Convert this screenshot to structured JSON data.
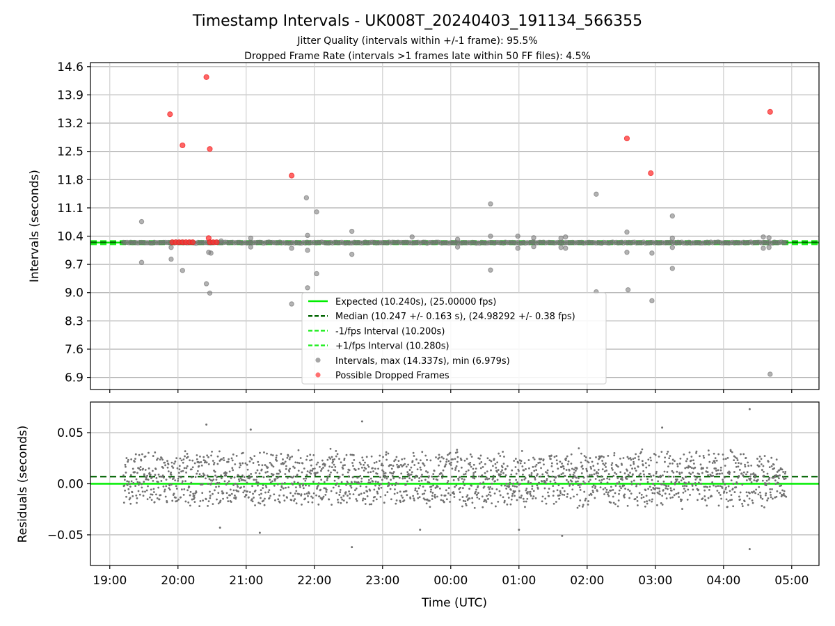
{
  "title": "Timestamp Intervals - UK008T_20240403_191134_566355",
  "subtitle_lines": [
    "Jitter Quality (intervals within +/-1 frame): 95.5%",
    "Dropped Frame Rate (intervals >1 frames late within 50 FF files): 4.5%"
  ],
  "colors": {
    "expected": "#00ee00",
    "median": "#006400",
    "interval_bounds": "#22ee22",
    "points": "#808080",
    "dropped": "#ff3333",
    "grid": "#b0b0b0"
  },
  "chart_data": [
    {
      "type": "scatter",
      "ylabel": "Intervals (seconds)",
      "ylim": [
        6.6,
        14.7
      ],
      "yticks": [
        "6.9",
        "7.6",
        "8.3",
        "9.0",
        "9.7",
        "10.4",
        "11.1",
        "11.8",
        "12.5",
        "13.2",
        "13.9",
        "14.6"
      ],
      "xlim": [
        "18:43",
        "05:24"
      ],
      "grid": true,
      "legend_position": "lower center",
      "legend": [
        "Expected (10.240s), (25.00000 fps)",
        "Median (10.247 +/- 0.163 s), (24.98292 +/- 0.38 fps)",
        "-1/fps Interval (10.200s)",
        "+1/fps Interval (10.280s)",
        "Intervals, max (14.337s), min (6.979s)",
        "Possible Dropped Frames"
      ],
      "lines": {
        "expected": 10.24,
        "median": 10.247,
        "lower": 10.2,
        "upper": 10.28
      },
      "main_band": {
        "start": "19:12",
        "end": "04:55",
        "value": 10.24
      },
      "outliers": [
        {
          "t": "19:28",
          "v": 10.76
        },
        {
          "t": "19:28",
          "v": 9.75
        },
        {
          "t": "19:54",
          "v": 9.83
        },
        {
          "t": "19:54",
          "v": 10.12
        },
        {
          "t": "20:04",
          "v": 9.55
        },
        {
          "t": "20:25",
          "v": 9.22
        },
        {
          "t": "20:27",
          "v": 10.0
        },
        {
          "t": "20:28",
          "v": 8.99
        },
        {
          "t": "20:29",
          "v": 9.98
        },
        {
          "t": "20:38",
          "v": 10.28
        },
        {
          "t": "21:04",
          "v": 10.35
        },
        {
          "t": "21:04",
          "v": 10.13
        },
        {
          "t": "21:40",
          "v": 10.1
        },
        {
          "t": "21:40",
          "v": 8.72
        },
        {
          "t": "21:53",
          "v": 11.35
        },
        {
          "t": "21:54",
          "v": 10.42
        },
        {
          "t": "21:54",
          "v": 10.05
        },
        {
          "t": "21:54",
          "v": 9.12
        },
        {
          "t": "22:02",
          "v": 11.0
        },
        {
          "t": "22:02",
          "v": 9.47
        },
        {
          "t": "22:33",
          "v": 10.52
        },
        {
          "t": "22:33",
          "v": 9.95
        },
        {
          "t": "23:26",
          "v": 10.38
        },
        {
          "t": "00:06",
          "v": 10.32
        },
        {
          "t": "00:06",
          "v": 10.13
        },
        {
          "t": "00:35",
          "v": 11.2
        },
        {
          "t": "00:35",
          "v": 10.4
        },
        {
          "t": "00:35",
          "v": 9.56
        },
        {
          "t": "00:59",
          "v": 10.4
        },
        {
          "t": "00:59",
          "v": 10.1
        },
        {
          "t": "01:13",
          "v": 10.36
        },
        {
          "t": "01:13",
          "v": 10.14
        },
        {
          "t": "01:37",
          "v": 10.35
        },
        {
          "t": "01:37",
          "v": 10.12
        },
        {
          "t": "01:41",
          "v": 10.38
        },
        {
          "t": "01:41",
          "v": 10.1
        },
        {
          "t": "02:08",
          "v": 11.44
        },
        {
          "t": "02:08",
          "v": 9.02
        },
        {
          "t": "02:35",
          "v": 10.5
        },
        {
          "t": "02:35",
          "v": 10.0
        },
        {
          "t": "02:36",
          "v": 9.07
        },
        {
          "t": "02:57",
          "v": 9.98
        },
        {
          "t": "02:57",
          "v": 8.8
        },
        {
          "t": "03:15",
          "v": 10.9
        },
        {
          "t": "03:15",
          "v": 10.35
        },
        {
          "t": "03:15",
          "v": 10.12
        },
        {
          "t": "03:15",
          "v": 9.6
        },
        {
          "t": "04:35",
          "v": 10.38
        },
        {
          "t": "04:35",
          "v": 10.1
        },
        {
          "t": "04:40",
          "v": 10.36
        },
        {
          "t": "04:40",
          "v": 10.12
        },
        {
          "t": "04:41",
          "v": 6.98
        }
      ],
      "dropped_frames": [
        {
          "t": "19:53",
          "v": 13.42
        },
        {
          "t": "20:04",
          "v": 12.65
        },
        {
          "t": "20:25",
          "v": 14.34
        },
        {
          "t": "20:28",
          "v": 12.56
        },
        {
          "t": "21:40",
          "v": 11.9
        },
        {
          "t": "02:35",
          "v": 12.82
        },
        {
          "t": "02:56",
          "v": 11.96
        },
        {
          "t": "04:41",
          "v": 13.48
        },
        {
          "t": "19:55",
          "v": 10.25
        },
        {
          "t": "19:58",
          "v": 10.25
        },
        {
          "t": "20:01",
          "v": 10.25
        },
        {
          "t": "20:04",
          "v": 10.25
        },
        {
          "t": "20:07",
          "v": 10.25
        },
        {
          "t": "20:10",
          "v": 10.25
        },
        {
          "t": "20:13",
          "v": 10.25
        },
        {
          "t": "20:27",
          "v": 10.35
        },
        {
          "t": "20:28",
          "v": 10.25
        },
        {
          "t": "20:31",
          "v": 10.25
        },
        {
          "t": "20:34",
          "v": 10.25
        }
      ]
    },
    {
      "type": "scatter",
      "xlabel": "Time (UTC)",
      "ylabel": "Residuals (seconds)",
      "ylim": [
        -0.08,
        0.08
      ],
      "yticks": [
        "−0.05",
        "0.00",
        "0.05"
      ],
      "xticks": [
        "19:00",
        "20:00",
        "21:00",
        "22:00",
        "23:00",
        "00:00",
        "01:00",
        "02:00",
        "03:00",
        "04:00",
        "05:00"
      ],
      "grid": true,
      "lines": {
        "zero": 0.0,
        "median_offset": 0.007
      },
      "residual_band": {
        "start": "19:12",
        "end": "04:55",
        "center": 0.005,
        "spread": 0.03
      },
      "residual_extremes": [
        {
          "t": "20:25",
          "v": 0.058
        },
        {
          "t": "22:33",
          "v": -0.062
        },
        {
          "t": "22:42",
          "v": 0.061
        },
        {
          "t": "21:12",
          "v": -0.048
        },
        {
          "t": "01:38",
          "v": -0.051
        },
        {
          "t": "04:23",
          "v": 0.073
        },
        {
          "t": "04:23",
          "v": -0.064
        },
        {
          "t": "01:00",
          "v": -0.045
        },
        {
          "t": "23:33",
          "v": -0.045
        },
        {
          "t": "20:37",
          "v": -0.043
        },
        {
          "t": "03:06",
          "v": 0.055
        },
        {
          "t": "21:04",
          "v": 0.053
        }
      ]
    }
  ]
}
